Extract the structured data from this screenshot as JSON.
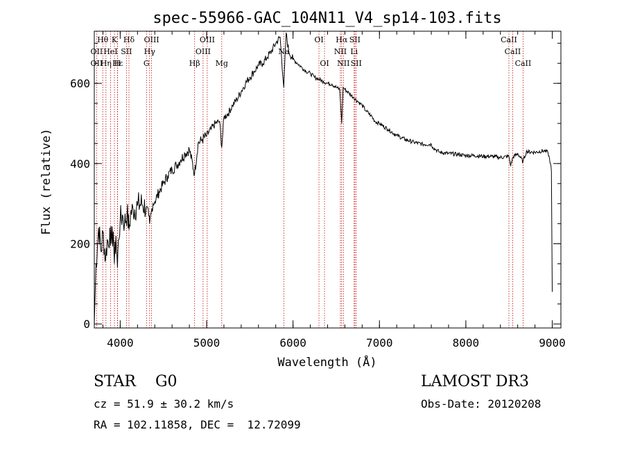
{
  "chart_data": {
    "type": "line",
    "title": "spec-55966-GAC_104N11_V4_sp14-103.fits",
    "xlabel": "Wavelength (Å)",
    "ylabel": "Flux (relative)",
    "xlim": [
      3700,
      9100
    ],
    "ylim": [
      -10,
      730
    ],
    "xticks": [
      4000,
      5000,
      6000,
      7000,
      8000,
      9000
    ],
    "yticks": [
      0,
      200,
      400,
      600
    ],
    "grid": false,
    "series": [
      {
        "name": "flux",
        "x": [
          3700,
          3720,
          3750,
          3780,
          3800,
          3830,
          3850,
          3870,
          3880,
          3900,
          3920,
          3933,
          3950,
          3968,
          3980,
          4000,
          4030,
          4050,
          4080,
          4101,
          4120,
          4150,
          4200,
          4250,
          4300,
          4330,
          4340,
          4360,
          4380,
          4400,
          4450,
          4500,
          4550,
          4600,
          4650,
          4700,
          4750,
          4800,
          4861,
          4900,
          4950,
          5000,
          5050,
          5100,
          5150,
          5175,
          5200,
          5250,
          5300,
          5350,
          5400,
          5450,
          5500,
          5550,
          5600,
          5650,
          5700,
          5750,
          5800,
          5850,
          5893,
          5920,
          5950,
          6000,
          6050,
          6100,
          6150,
          6200,
          6250,
          6300,
          6350,
          6400,
          6450,
          6500,
          6540,
          6563,
          6580,
          6600,
          6650,
          6700,
          6750,
          6800,
          6850,
          6900,
          6950,
          7000,
          7100,
          7200,
          7300,
          7400,
          7500,
          7600,
          7620,
          7650,
          7700,
          7800,
          7900,
          8000,
          8100,
          8200,
          8300,
          8400,
          8498,
          8520,
          8542,
          8600,
          8662,
          8700,
          8800,
          8900,
          8950,
          8980,
          8990,
          9000
        ],
        "values": [
          0,
          150,
          240,
          180,
          230,
          160,
          210,
          190,
          240,
          200,
          230,
          150,
          220,
          140,
          210,
          260,
          270,
          250,
          280,
          235,
          275,
          285,
          295,
          300,
          290,
          270,
          250,
          280,
          300,
          305,
          330,
          350,
          370,
          385,
          395,
          410,
          425,
          435,
          375,
          450,
          460,
          470,
          485,
          500,
          505,
          440,
          515,
          525,
          545,
          560,
          580,
          600,
          615,
          630,
          645,
          650,
          665,
          680,
          700,
          715,
          590,
          725,
          680,
          660,
          650,
          640,
          630,
          625,
          615,
          610,
          605,
          600,
          598,
          590,
          585,
          500,
          590,
          585,
          575,
          565,
          555,
          545,
          530,
          520,
          505,
          500,
          485,
          470,
          460,
          453,
          448,
          448,
          440,
          435,
          428,
          425,
          423,
          420,
          420,
          418,
          418,
          415,
          418,
          395,
          415,
          425,
          405,
          430,
          428,
          432,
          428,
          400,
          380,
          80
        ]
      }
    ],
    "lines": [
      {
        "label": "Hθ",
        "x": 3798,
        "row": 0
      },
      {
        "label": "K",
        "x": 3933,
        "row": 0
      },
      {
        "label": "Hδ",
        "x": 4101,
        "row": 0
      },
      {
        "label": "OIII",
        "x": 4363,
        "row": 0
      },
      {
        "label": "OIII",
        "x": 5007,
        "row": 0
      },
      {
        "label": "OI",
        "x": 6300,
        "row": 0
      },
      {
        "label": "Hα",
        "x": 6563,
        "row": 0
      },
      {
        "label": "SII",
        "x": 6716,
        "row": 0
      },
      {
        "label": "CaII",
        "x": 8498,
        "row": 0
      },
      {
        "label": "OII",
        "x": 3727,
        "row": 1
      },
      {
        "label": "HeI",
        "x": 3888,
        "row": 1
      },
      {
        "label": "SII",
        "x": 4072,
        "row": 1
      },
      {
        "label": "Hγ",
        "x": 4340,
        "row": 1
      },
      {
        "label": "OIII",
        "x": 4959,
        "row": 1
      },
      {
        "label": "Na",
        "x": 5893,
        "row": 1
      },
      {
        "label": "NII",
        "x": 6548,
        "row": 1
      },
      {
        "label": "Li",
        "x": 6707,
        "row": 1
      },
      {
        "label": "CaII",
        "x": 8542,
        "row": 1
      },
      {
        "label": "OII",
        "x": 3727,
        "row": 2
      },
      {
        "label": "Hε",
        "x": 3970,
        "row": 2
      },
      {
        "label": "Hη",
        "x": 3835,
        "row": 2
      },
      {
        "label": "H",
        "x": 3968,
        "row": 2
      },
      {
        "label": "G",
        "x": 4304,
        "row": 2
      },
      {
        "label": "Hβ",
        "x": 4861,
        "row": 2
      },
      {
        "label": "Mg",
        "x": 5175,
        "row": 2
      },
      {
        "label": "OI",
        "x": 6364,
        "row": 2
      },
      {
        "label": "NII",
        "x": 6583,
        "row": 2
      },
      {
        "label": "SII",
        "x": 6731,
        "row": 2
      },
      {
        "label": "CaII",
        "x": 8662,
        "row": 2
      }
    ]
  },
  "info": {
    "star_class": "STAR    G0",
    "survey": "LAMOST DR3",
    "redshift": "cz = 51.9 ± 30.2 km/s",
    "obs_date": "Obs-Date: 20120208",
    "coords": "RA = 102.11858, DEC =  12.72099"
  }
}
